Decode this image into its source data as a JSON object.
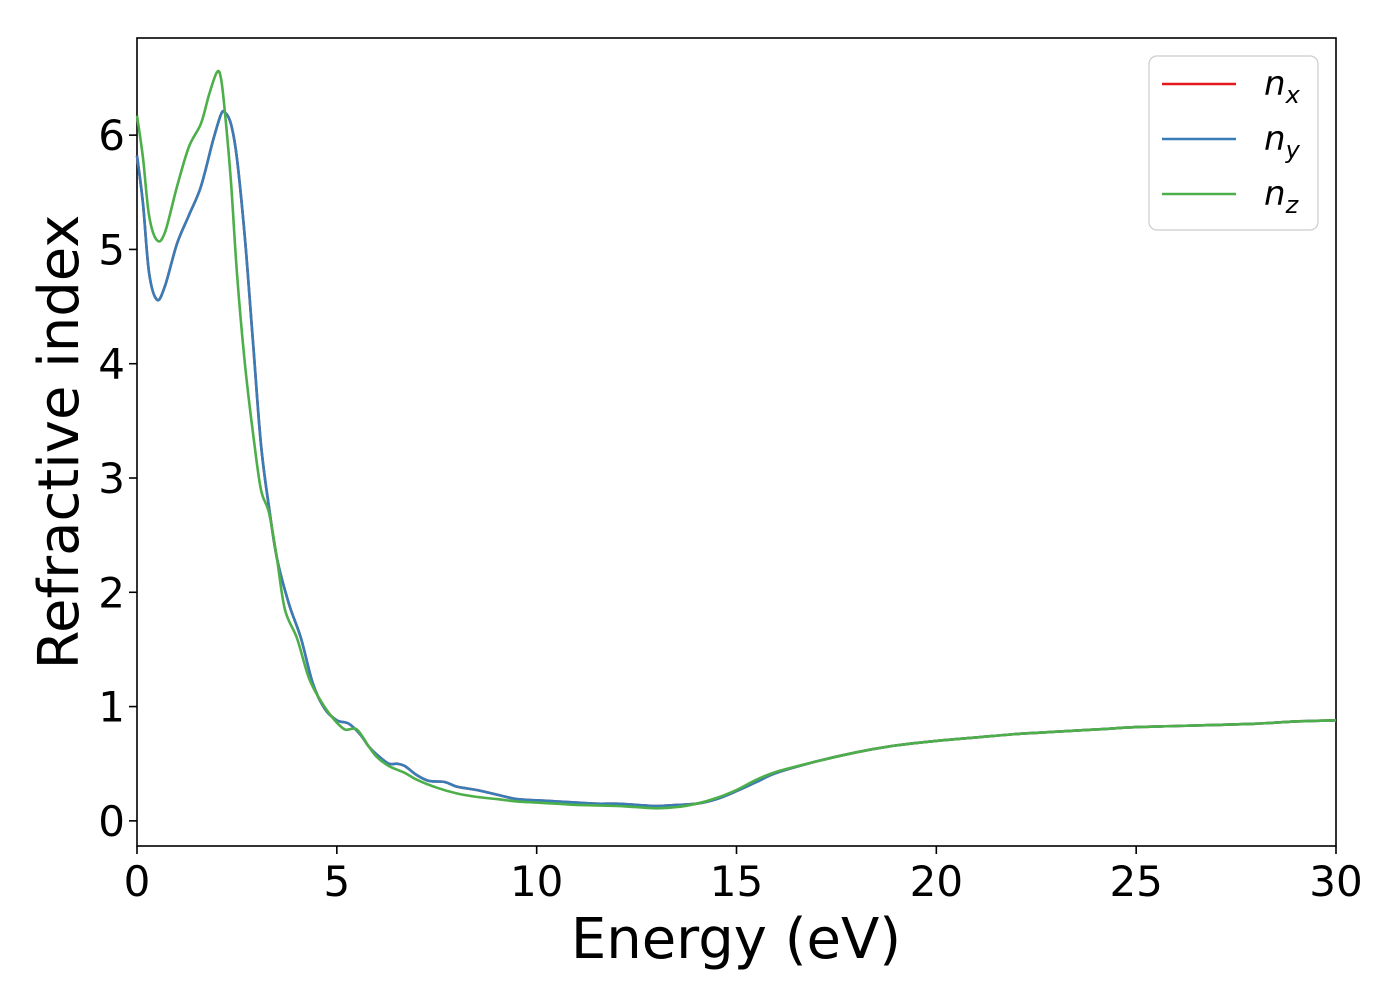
{
  "chart_data": {
    "type": "line",
    "xlabel": "Energy (eV)",
    "ylabel": "Refractive index",
    "xlim": [
      0,
      30
    ],
    "ylim": [
      -0.22,
      6.85
    ],
    "xticks": [
      "0",
      "5",
      "10",
      "15",
      "20",
      "25",
      "30"
    ],
    "yticks": [
      "0",
      "1",
      "2",
      "3",
      "4",
      "5",
      "6"
    ],
    "grid": false,
    "legend_position": "top-right",
    "series": [
      {
        "name": "n_x",
        "label_base": "n",
        "label_sub": "x",
        "color": "#e41a1c",
        "points": [
          [
            0,
            5.82
          ],
          [
            0.15,
            5.4
          ],
          [
            0.3,
            4.8
          ],
          [
            0.5,
            4.56
          ],
          [
            0.7,
            4.68
          ],
          [
            1.0,
            5.05
          ],
          [
            1.3,
            5.3
          ],
          [
            1.6,
            5.55
          ],
          [
            1.9,
            5.95
          ],
          [
            2.1,
            6.18
          ],
          [
            2.2,
            6.2
          ],
          [
            2.35,
            6.1
          ],
          [
            2.5,
            5.8
          ],
          [
            2.7,
            5.1
          ],
          [
            2.9,
            4.2
          ],
          [
            3.1,
            3.3
          ],
          [
            3.3,
            2.75
          ],
          [
            3.5,
            2.3
          ],
          [
            3.8,
            1.9
          ],
          [
            4.1,
            1.6
          ],
          [
            4.4,
            1.2
          ],
          [
            4.7,
            0.98
          ],
          [
            5.0,
            0.88
          ],
          [
            5.3,
            0.85
          ],
          [
            5.6,
            0.75
          ],
          [
            5.8,
            0.65
          ],
          [
            6.0,
            0.58
          ],
          [
            6.3,
            0.5
          ],
          [
            6.5,
            0.5
          ],
          [
            6.7,
            0.48
          ],
          [
            7.0,
            0.4
          ],
          [
            7.3,
            0.35
          ],
          [
            7.7,
            0.34
          ],
          [
            8.0,
            0.3
          ],
          [
            8.5,
            0.27
          ],
          [
            9.0,
            0.23
          ],
          [
            9.5,
            0.19
          ],
          [
            10.0,
            0.18
          ],
          [
            10.5,
            0.17
          ],
          [
            11.0,
            0.16
          ],
          [
            11.5,
            0.15
          ],
          [
            12.0,
            0.15
          ],
          [
            12.5,
            0.14
          ],
          [
            13.0,
            0.13
          ],
          [
            13.5,
            0.14
          ],
          [
            14.0,
            0.15
          ],
          [
            14.5,
            0.19
          ],
          [
            15.0,
            0.26
          ],
          [
            15.5,
            0.34
          ],
          [
            16.0,
            0.42
          ],
          [
            17.0,
            0.52
          ],
          [
            18.0,
            0.6
          ],
          [
            19.0,
            0.66
          ],
          [
            20.0,
            0.7
          ],
          [
            21.0,
            0.73
          ],
          [
            22.0,
            0.76
          ],
          [
            23.0,
            0.78
          ],
          [
            24.0,
            0.8
          ],
          [
            25.0,
            0.82
          ],
          [
            26.0,
            0.83
          ],
          [
            27.0,
            0.84
          ],
          [
            28.0,
            0.85
          ],
          [
            29.0,
            0.87
          ],
          [
            30.0,
            0.88
          ]
        ]
      },
      {
        "name": "n_y",
        "label_base": "n",
        "label_sub": "y",
        "color": "#377eb8",
        "points": [
          [
            0,
            5.82
          ],
          [
            0.15,
            5.4
          ],
          [
            0.3,
            4.8
          ],
          [
            0.5,
            4.56
          ],
          [
            0.7,
            4.68
          ],
          [
            1.0,
            5.05
          ],
          [
            1.3,
            5.3
          ],
          [
            1.6,
            5.55
          ],
          [
            1.9,
            5.95
          ],
          [
            2.1,
            6.18
          ],
          [
            2.2,
            6.2
          ],
          [
            2.35,
            6.1
          ],
          [
            2.5,
            5.8
          ],
          [
            2.7,
            5.1
          ],
          [
            2.9,
            4.2
          ],
          [
            3.1,
            3.3
          ],
          [
            3.3,
            2.75
          ],
          [
            3.5,
            2.3
          ],
          [
            3.8,
            1.9
          ],
          [
            4.1,
            1.6
          ],
          [
            4.4,
            1.2
          ],
          [
            4.7,
            0.98
          ],
          [
            5.0,
            0.88
          ],
          [
            5.3,
            0.85
          ],
          [
            5.6,
            0.75
          ],
          [
            5.8,
            0.65
          ],
          [
            6.0,
            0.58
          ],
          [
            6.3,
            0.5
          ],
          [
            6.5,
            0.5
          ],
          [
            6.7,
            0.48
          ],
          [
            7.0,
            0.4
          ],
          [
            7.3,
            0.35
          ],
          [
            7.7,
            0.34
          ],
          [
            8.0,
            0.3
          ],
          [
            8.5,
            0.27
          ],
          [
            9.0,
            0.23
          ],
          [
            9.5,
            0.19
          ],
          [
            10.0,
            0.18
          ],
          [
            10.5,
            0.17
          ],
          [
            11.0,
            0.16
          ],
          [
            11.5,
            0.15
          ],
          [
            12.0,
            0.15
          ],
          [
            12.5,
            0.14
          ],
          [
            13.0,
            0.13
          ],
          [
            13.5,
            0.14
          ],
          [
            14.0,
            0.15
          ],
          [
            14.5,
            0.19
          ],
          [
            15.0,
            0.26
          ],
          [
            15.5,
            0.34
          ],
          [
            16.0,
            0.42
          ],
          [
            17.0,
            0.52
          ],
          [
            18.0,
            0.6
          ],
          [
            19.0,
            0.66
          ],
          [
            20.0,
            0.7
          ],
          [
            21.0,
            0.73
          ],
          [
            22.0,
            0.76
          ],
          [
            23.0,
            0.78
          ],
          [
            24.0,
            0.8
          ],
          [
            25.0,
            0.82
          ],
          [
            26.0,
            0.83
          ],
          [
            27.0,
            0.84
          ],
          [
            28.0,
            0.85
          ],
          [
            29.0,
            0.87
          ],
          [
            30.0,
            0.88
          ]
        ]
      },
      {
        "name": "n_z",
        "label_base": "n",
        "label_sub": "z",
        "color": "#4daf4a",
        "points": [
          [
            0,
            6.17
          ],
          [
            0.15,
            5.8
          ],
          [
            0.3,
            5.3
          ],
          [
            0.5,
            5.08
          ],
          [
            0.7,
            5.15
          ],
          [
            1.0,
            5.55
          ],
          [
            1.3,
            5.9
          ],
          [
            1.6,
            6.1
          ],
          [
            1.8,
            6.35
          ],
          [
            2.0,
            6.55
          ],
          [
            2.1,
            6.5
          ],
          [
            2.2,
            6.2
          ],
          [
            2.35,
            5.6
          ],
          [
            2.5,
            4.8
          ],
          [
            2.7,
            4.0
          ],
          [
            2.9,
            3.4
          ],
          [
            3.1,
            2.9
          ],
          [
            3.3,
            2.7
          ],
          [
            3.5,
            2.3
          ],
          [
            3.7,
            1.85
          ],
          [
            4.0,
            1.6
          ],
          [
            4.3,
            1.25
          ],
          [
            4.6,
            1.05
          ],
          [
            4.9,
            0.9
          ],
          [
            5.2,
            0.8
          ],
          [
            5.5,
            0.8
          ],
          [
            5.8,
            0.65
          ],
          [
            6.0,
            0.56
          ],
          [
            6.3,
            0.48
          ],
          [
            6.7,
            0.42
          ],
          [
            7.0,
            0.36
          ],
          [
            7.5,
            0.29
          ],
          [
            8.0,
            0.24
          ],
          [
            8.5,
            0.21
          ],
          [
            9.0,
            0.19
          ],
          [
            9.5,
            0.17
          ],
          [
            10.0,
            0.16
          ],
          [
            10.5,
            0.15
          ],
          [
            11.0,
            0.14
          ],
          [
            12.0,
            0.13
          ],
          [
            12.5,
            0.12
          ],
          [
            13.0,
            0.11
          ],
          [
            13.5,
            0.12
          ],
          [
            14.0,
            0.15
          ],
          [
            14.5,
            0.2
          ],
          [
            15.0,
            0.27
          ],
          [
            15.5,
            0.36
          ],
          [
            16.0,
            0.43
          ],
          [
            17.0,
            0.52
          ],
          [
            18.0,
            0.6
          ],
          [
            19.0,
            0.66
          ],
          [
            20.0,
            0.7
          ],
          [
            21.0,
            0.73
          ],
          [
            22.0,
            0.76
          ],
          [
            23.0,
            0.78
          ],
          [
            24.0,
            0.8
          ],
          [
            25.0,
            0.82
          ],
          [
            26.0,
            0.83
          ],
          [
            27.0,
            0.84
          ],
          [
            28.0,
            0.85
          ],
          [
            29.0,
            0.87
          ],
          [
            30.0,
            0.88
          ]
        ]
      }
    ]
  }
}
